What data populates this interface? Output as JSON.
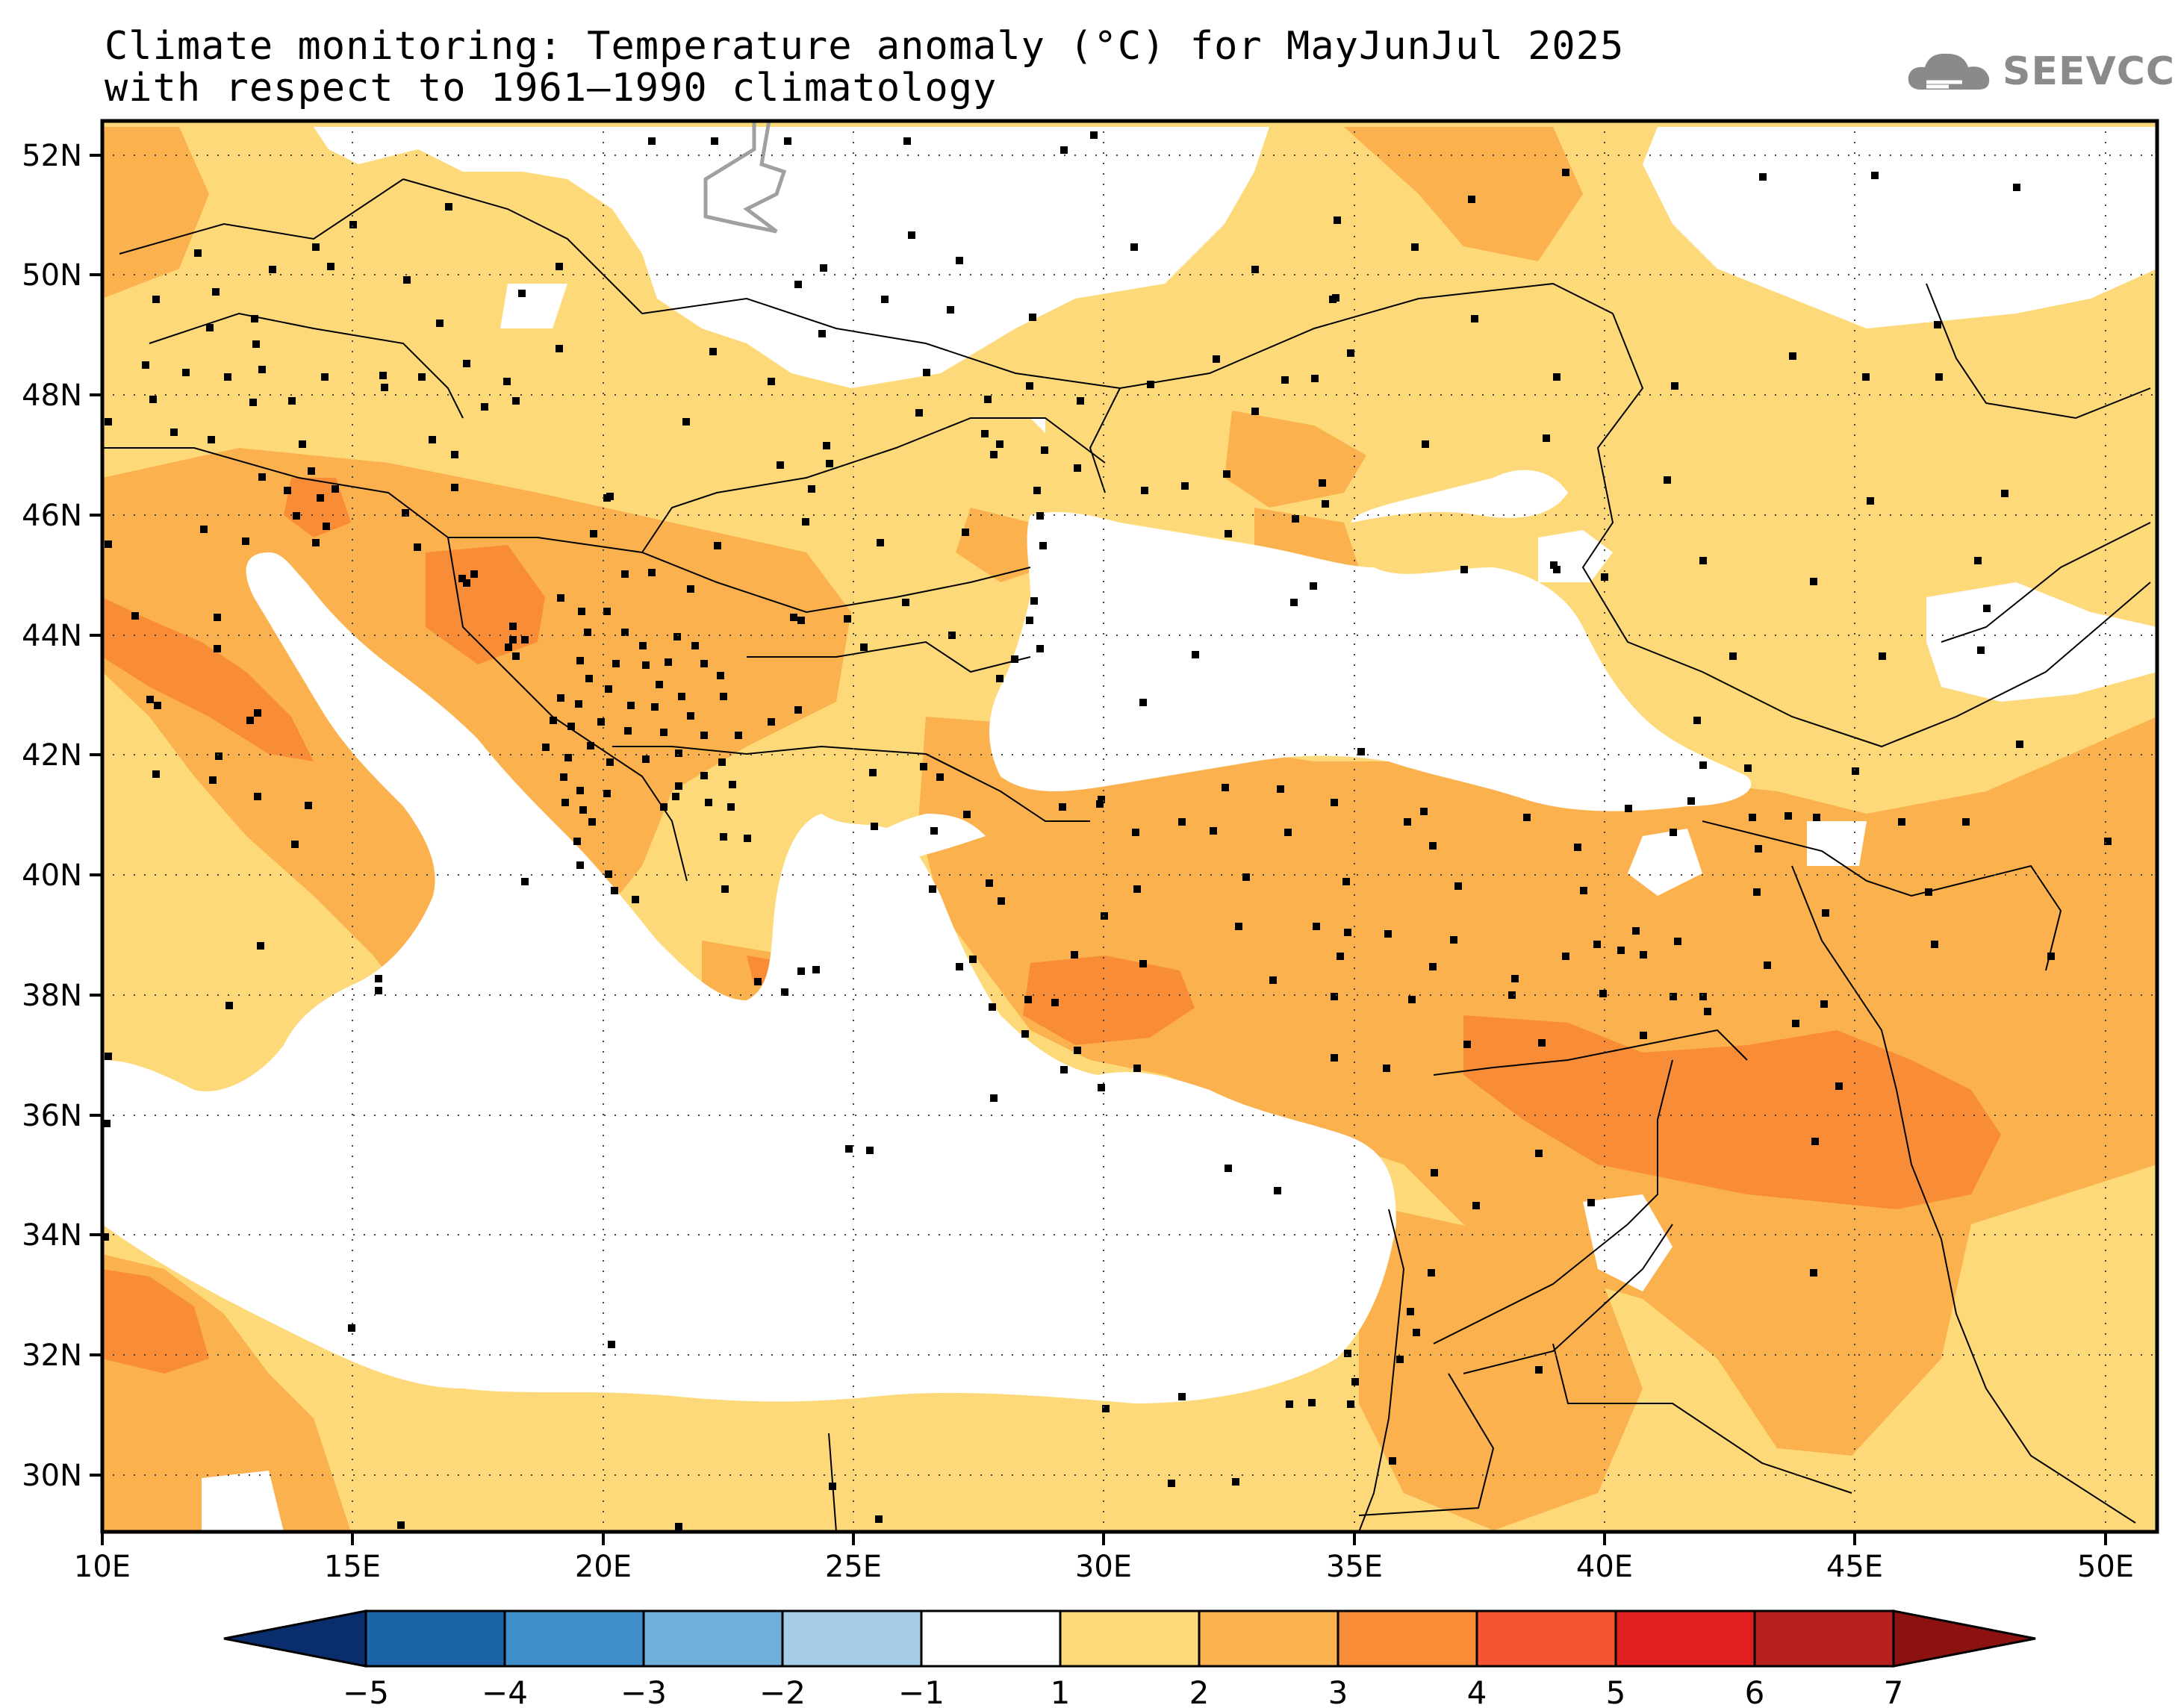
{
  "title": {
    "line1": "Climate monitoring: Temperature anomaly (°C) for MayJunJul 2025",
    "line2": "with respect to 1961–1990 climatology"
  },
  "logo": {
    "text": "SEEVCCC",
    "icon": "cloud-icon"
  },
  "map": {
    "lon_range": [
      10,
      51
    ],
    "lat_range": [
      29,
      52.5
    ],
    "lon_ticks": [
      "10E",
      "15E",
      "20E",
      "25E",
      "30E",
      "35E",
      "40E",
      "45E",
      "50E"
    ],
    "lat_ticks": [
      "30N",
      "32N",
      "34N",
      "36N",
      "38N",
      "40N",
      "42N",
      "44N",
      "46N",
      "48N",
      "50N",
      "52N"
    ],
    "grid": "dotted"
  },
  "colorbar": {
    "labels": [
      "−5",
      "−4",
      "−3",
      "−2",
      "−1",
      "1",
      "2",
      "3",
      "4",
      "5",
      "6",
      "7"
    ],
    "colors": [
      "#0a2d6e",
      "#1c64a8",
      "#3d8ec9",
      "#6fb0da",
      "#a6cde6",
      "#ffffff",
      "#fdd97a",
      "#fbb14e",
      "#f98d37",
      "#f55332",
      "#e0201e",
      "#b81f1f",
      "#8c1111"
    ]
  },
  "colors": {
    "c1_2": "#fdd97a",
    "c2_3": "#fbb14e",
    "c3_4": "#f98d37",
    "sea": "#ffffff",
    "lake_border": "#a0a0a0"
  }
}
